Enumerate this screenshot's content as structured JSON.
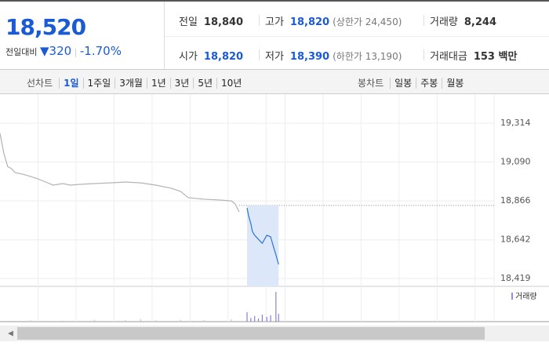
{
  "quote": {
    "price": "18,520",
    "change_label": "전일대비",
    "change": "320",
    "change_rate": "-1.70%"
  },
  "stats": [
    {
      "label": "전일",
      "value": "18,840"
    },
    {
      "label": "고가",
      "value": "18,820",
      "note": "(상한가 24,450)"
    },
    {
      "label": "거래량",
      "value": "8,244"
    },
    {
      "label": "시가",
      "value": "18,820"
    },
    {
      "label": "저가",
      "value": "18,390",
      "note": "(하한가 13,190)"
    },
    {
      "label": "거래대금",
      "value": "153 백만"
    }
  ],
  "toolbar": {
    "line_label": "선차트",
    "line_periods": [
      "1일",
      "1주일",
      "3개월",
      "1년",
      "3년",
      "5년",
      "10년"
    ],
    "candle_label": "봉차트",
    "candle_periods": [
      "일봉",
      "주봉",
      "월봉"
    ]
  },
  "chart_data": {
    "type": "line",
    "xlim": [
      0,
      130
    ],
    "xticks": [
      10,
      20,
      30,
      40,
      50,
      60,
      70,
      75,
      85,
      95,
      105,
      115,
      125
    ],
    "ylim": [
      18374,
      19445
    ],
    "yticks": [
      {
        "value": 19314,
        "label": "19,314"
      },
      {
        "value": 19090,
        "label": "19,090"
      },
      {
        "value": 18866,
        "label": "18,866"
      },
      {
        "value": 18642,
        "label": "18,642"
      },
      {
        "value": 18419,
        "label": "18,419"
      }
    ],
    "grid": true,
    "reference": 18840,
    "series": [
      {
        "color": "#b4b4b4",
        "x": [
          0,
          1,
          2,
          3,
          4,
          6,
          8,
          10,
          12,
          14,
          16.5,
          18.5,
          20.6,
          24.8,
          29,
          33,
          37,
          41,
          45,
          47.5,
          49.5,
          53.6,
          57.8,
          60.9,
          61.9,
          62.9
        ],
        "values": [
          19255,
          19142,
          19065,
          19052,
          19029,
          19020,
          19007,
          18993,
          18975,
          18957,
          18966,
          18957,
          18961,
          18966,
          18970,
          18975,
          18970,
          18957,
          18939,
          18921,
          18885,
          18876,
          18871,
          18866,
          18848,
          18803
        ]
      },
      {
        "color": "#2d72d9",
        "highlight": "#dce8fa",
        "x": [
          65,
          65.4,
          66,
          66.4,
          67,
          68,
          69,
          70.2,
          71.2,
          71.8,
          72.6,
          73.3
        ],
        "values": [
          18826,
          18781,
          18735,
          18690,
          18668,
          18645,
          18622,
          18668,
          18659,
          18613,
          18555,
          18500
        ]
      }
    ],
    "volume": {
      "legend": "거래량",
      "legend_color": "#9a88d8",
      "ylim": [
        0,
        100
      ],
      "x": [
        8,
        16.5,
        24.8,
        33,
        37,
        41,
        47.5,
        53.6,
        60.9,
        65,
        66,
        67,
        68,
        69,
        70.2,
        71.2,
        72.6,
        73.3
      ],
      "values": [
        4,
        3,
        6,
        5,
        8,
        4,
        6,
        5,
        7,
        30,
        12,
        18,
        10,
        22,
        15,
        20,
        95,
        25
      ],
      "colors": [
        "#c8c8c8",
        "#c8c8c8",
        "#c8c8c8",
        "#c8c8c8",
        "#c8c8c8",
        "#c8c8c8",
        "#c8c8c8",
        "#c8c8c8",
        "#c8c8c8",
        "#8f7fd0",
        "#8f7fd0",
        "#8f7fd0",
        "#8f7fd0",
        "#8f7fd0",
        "#8f7fd0",
        "#8f7fd0",
        "#8f7fd0",
        "#8f7fd0"
      ]
    }
  }
}
